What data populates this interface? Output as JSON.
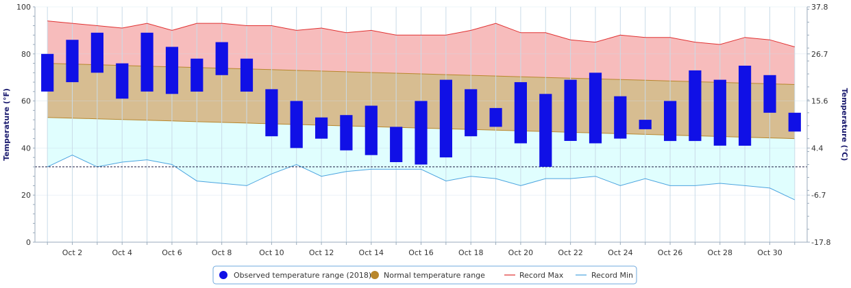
{
  "chart_data": {
    "type": "bar",
    "x": [
      "Oct 1",
      "Oct 2",
      "Oct 3",
      "Oct 4",
      "Oct 5",
      "Oct 6",
      "Oct 7",
      "Oct 8",
      "Oct 9",
      "Oct 10",
      "Oct 11",
      "Oct 12",
      "Oct 13",
      "Oct 14",
      "Oct 15",
      "Oct 16",
      "Oct 17",
      "Oct 18",
      "Oct 19",
      "Oct 20",
      "Oct 21",
      "Oct 22",
      "Oct 23",
      "Oct 24",
      "Oct 25",
      "Oct 26",
      "Oct 27",
      "Oct 28",
      "Oct 29",
      "Oct 30",
      "Oct 31"
    ],
    "x_tick_labels": [
      "Oct 2",
      "Oct 4",
      "Oct 6",
      "Oct 8",
      "Oct 10",
      "Oct 12",
      "Oct 14",
      "Oct 16",
      "Oct 18",
      "Oct 20",
      "Oct 22",
      "Oct 24",
      "Oct 26",
      "Oct 28",
      "Oct 30"
    ],
    "ylabel": "Temperature (°F)",
    "y2label": "Temperature (°C)",
    "ylim": [
      0,
      100
    ],
    "y_ticks": [
      "0",
      "20",
      "40",
      "60",
      "80",
      "100"
    ],
    "y2_ticks": [
      "-17.8",
      "-6.7",
      "4.4",
      "15.6",
      "26.7",
      "37.8"
    ],
    "freezing_line": 32,
    "series": [
      {
        "name": "Observed temperature range (2018)",
        "kind": "floating-bar",
        "color": "#1010e6",
        "low": [
          64,
          68,
          72,
          61,
          64,
          63,
          64,
          71,
          64,
          45,
          40,
          44,
          39,
          37,
          34,
          33,
          36,
          45,
          49,
          42,
          32,
          43,
          42,
          44,
          48,
          43,
          43,
          41,
          41,
          55,
          47
        ],
        "high": [
          80,
          86,
          89,
          76,
          89,
          83,
          78,
          85,
          78,
          65,
          60,
          53,
          54,
          58,
          49,
          60,
          69,
          65,
          57,
          68,
          63,
          69,
          72,
          62,
          52,
          60,
          73,
          69,
          75,
          71,
          55
        ]
      },
      {
        "name": "Normal temperature range",
        "kind": "band",
        "color": "#b8862b",
        "low": [
          53,
          52.7,
          52.4,
          52.1,
          51.8,
          51.5,
          51.2,
          50.9,
          50.6,
          50.3,
          50,
          49.7,
          49.4,
          49.1,
          48.8,
          48.5,
          48.2,
          47.9,
          47.6,
          47.3,
          47,
          46.7,
          46.4,
          46.1,
          45.8,
          45.5,
          45.2,
          44.9,
          44.6,
          44.3,
          44
        ],
        "high": [
          76,
          75.7,
          75.4,
          75.1,
          74.8,
          74.5,
          74.2,
          73.9,
          73.6,
          73.3,
          73,
          72.7,
          72.4,
          72.1,
          71.8,
          71.5,
          71.2,
          70.9,
          70.6,
          70.3,
          70,
          69.7,
          69.4,
          69.1,
          68.8,
          68.5,
          68.2,
          67.9,
          67.6,
          67.3,
          67
        ]
      },
      {
        "name": "Record Max",
        "kind": "line",
        "color": "#e03030",
        "values": [
          94,
          93,
          92,
          91,
          93,
          90,
          93,
          93,
          92,
          92,
          90,
          91,
          89,
          90,
          88,
          88,
          88,
          90,
          93,
          89,
          89,
          86,
          85,
          88,
          87,
          87,
          85,
          84,
          87,
          86,
          83
        ]
      },
      {
        "name": "Record Min",
        "kind": "line",
        "color": "#4aa3df",
        "values": [
          32,
          37,
          32,
          34,
          35,
          33,
          26,
          25,
          24,
          29,
          33,
          28,
          30,
          31,
          31,
          31,
          26,
          28,
          27,
          24,
          27,
          27,
          28,
          24,
          27,
          24,
          24,
          25,
          24,
          23,
          18
        ]
      }
    ],
    "legend": {
      "position": "bottom-center",
      "items": [
        {
          "label": "Observed temperature range (2018)",
          "color": "#1010e6",
          "symbol": "circle"
        },
        {
          "label": "Normal temperature range",
          "color": "#b8862b",
          "symbol": "circle"
        },
        {
          "label": "Record Max",
          "color": "#e03030",
          "symbol": "line"
        },
        {
          "label": "Record Min",
          "color": "#4aa3df",
          "symbol": "line"
        }
      ]
    },
    "grid": true,
    "colors": {
      "record_max_fill": "#f7bcbc",
      "normal_fill": "#d7bd91",
      "record_min_fill": "#e0fefe",
      "grid": "#c9dbe8",
      "axis_title": "#1a1a6e"
    }
  }
}
